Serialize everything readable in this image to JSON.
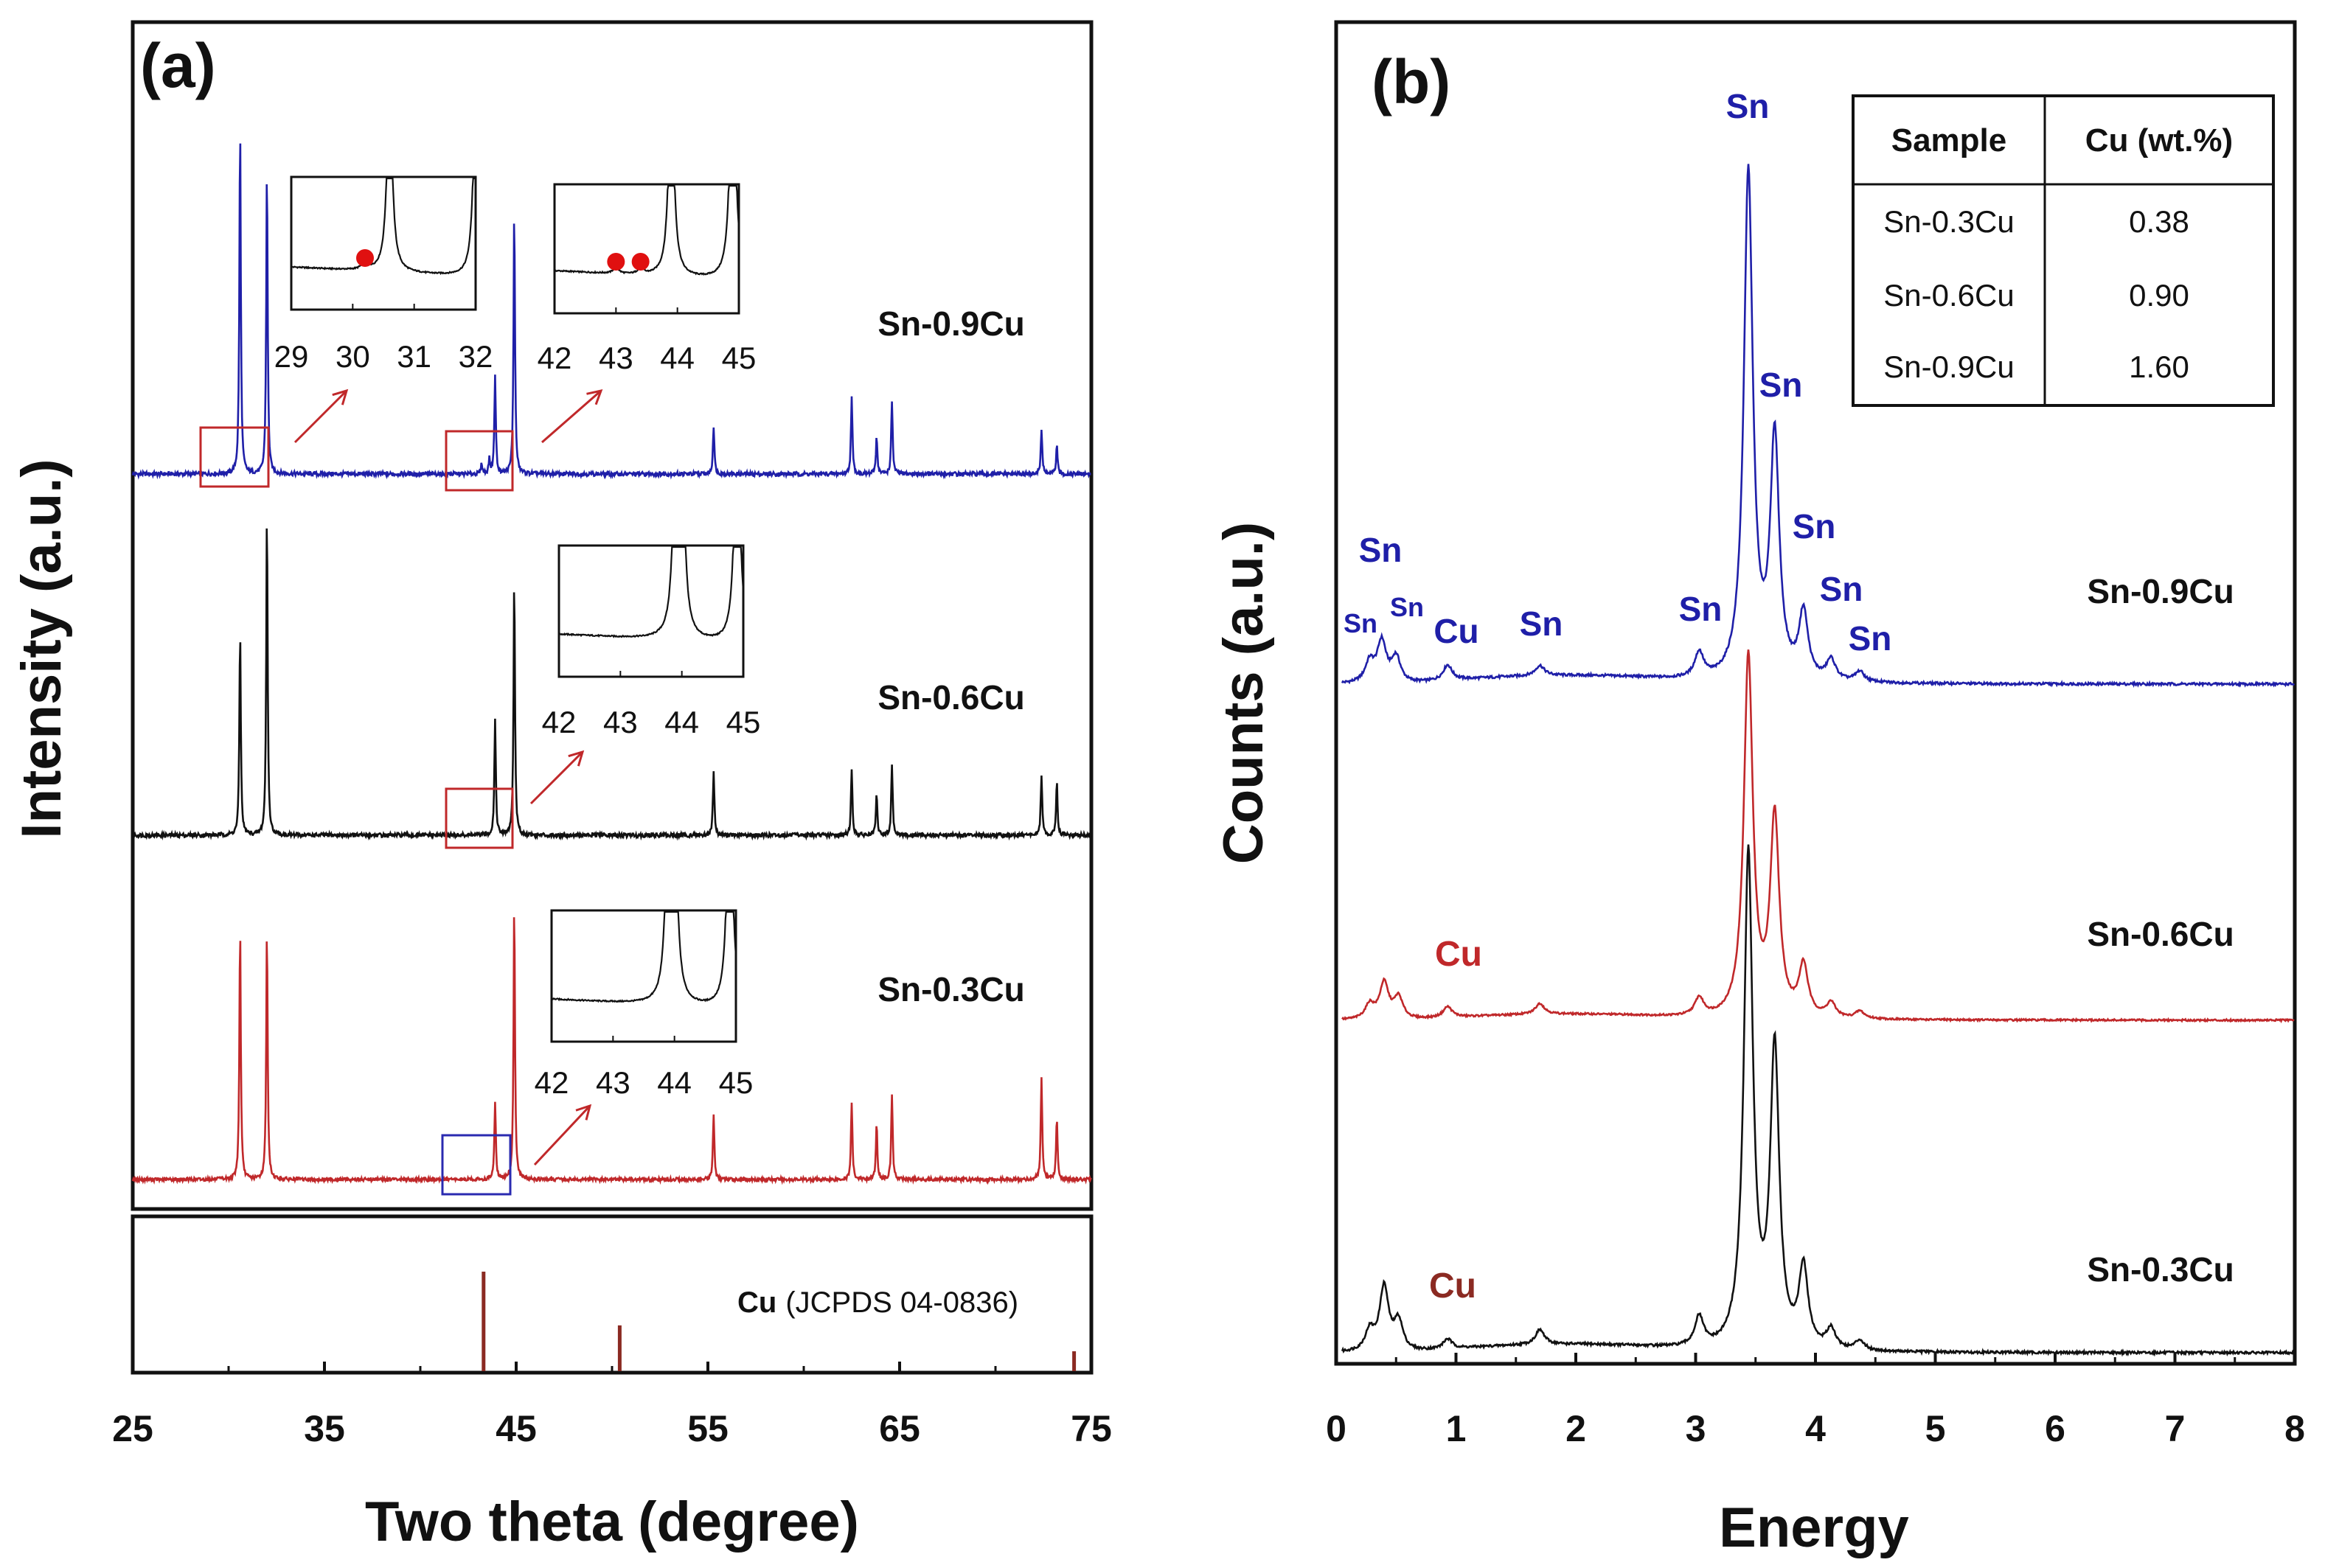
{
  "colors": {
    "blue": "#1f1fa8",
    "black": "#111111",
    "red": "#c0282a",
    "ref": "#8b2a22",
    "box_red": "#c0282a",
    "box_blue": "#2a2ab0",
    "marker": "#e01010"
  },
  "chart_data": [
    {
      "type": "line",
      "panel_label": "(a)",
      "title": "",
      "xlabel": "Two theta (degree)",
      "ylabel": "Intensity (a.u.)",
      "xlim": [
        25,
        75
      ],
      "xticks": [
        "25",
        "35",
        "45",
        "55",
        "65",
        "75"
      ],
      "xtick_values": [
        25,
        35,
        45,
        55,
        65,
        75
      ],
      "series": [
        {
          "name": "Sn-0.9Cu",
          "color": "#1f1fa8",
          "peaks": [
            [
              30.6,
              100
            ],
            [
              32.0,
              88
            ],
            [
              43.2,
              3
            ],
            [
              43.6,
              4
            ],
            [
              43.9,
              28
            ],
            [
              44.9,
              76
            ],
            [
              55.3,
              14
            ],
            [
              62.5,
              22
            ],
            [
              63.8,
              11
            ],
            [
              64.6,
              21
            ],
            [
              72.4,
              13
            ],
            [
              73.2,
              8
            ]
          ]
        },
        {
          "name": "Sn-0.6Cu",
          "color": "#111111",
          "peaks": [
            [
              30.6,
              60
            ],
            [
              32.0,
              95
            ],
            [
              43.9,
              34
            ],
            [
              44.9,
              75
            ],
            [
              55.3,
              19
            ],
            [
              62.5,
              19
            ],
            [
              63.8,
              12
            ],
            [
              64.6,
              21
            ],
            [
              72.4,
              18
            ],
            [
              73.2,
              16
            ]
          ]
        },
        {
          "name": "Sn-0.3Cu",
          "color": "#c0282a",
          "peaks": [
            [
              30.6,
              85
            ],
            [
              32.0,
              85
            ],
            [
              43.9,
              26
            ],
            [
              44.9,
              93
            ],
            [
              55.3,
              22
            ],
            [
              62.5,
              26
            ],
            [
              63.8,
              19
            ],
            [
              64.6,
              29
            ],
            [
              72.4,
              34
            ],
            [
              73.2,
              21
            ]
          ]
        }
      ],
      "reference": {
        "name": "Cu",
        "card": "(JCPDS 04-0836)",
        "color": "#8b2a22",
        "peaks": [
          [
            43.3,
            100
          ],
          [
            50.4,
            46
          ],
          [
            74.1,
            20
          ]
        ]
      },
      "insets": [
        {
          "series": "Sn-0.9Cu",
          "range": "29-32",
          "ticks": [
            "29",
            "30",
            "31",
            "32"
          ],
          "markers": [
            30.2
          ]
        },
        {
          "series": "Sn-0.9Cu",
          "range": "42-45",
          "ticks": [
            "42",
            "43",
            "44",
            "45"
          ],
          "markers": [
            43.0,
            43.4
          ]
        },
        {
          "series": "Sn-0.6Cu",
          "range": "42-45",
          "ticks": [
            "42",
            "43",
            "44",
            "45"
          ],
          "markers": []
        },
        {
          "series": "Sn-0.3Cu",
          "range": "42-45",
          "ticks": [
            "42",
            "43",
            "44",
            "45"
          ],
          "markers": []
        }
      ]
    },
    {
      "type": "line",
      "panel_label": "(b)",
      "title": "",
      "xlabel": "Energy",
      "ylabel": "Counts (a.u.)",
      "xlim": [
        0,
        8
      ],
      "xticks": [
        "0",
        "1",
        "2",
        "3",
        "4",
        "5",
        "6",
        "7",
        "8"
      ],
      "xtick_values": [
        0,
        1,
        2,
        3,
        4,
        5,
        6,
        7,
        8
      ],
      "series": [
        {
          "name": "Sn-0.9Cu",
          "color": "#1f1fa8",
          "peaks": [
            [
              0.28,
              4
            ],
            [
              0.38,
              8
            ],
            [
              0.5,
              5
            ],
            [
              0.93,
              3
            ],
            [
              1.7,
              2
            ],
            [
              3.03,
              5
            ],
            [
              3.44,
              100
            ],
            [
              3.66,
              47
            ],
            [
              3.9,
              13
            ],
            [
              4.13,
              4
            ],
            [
              4.37,
              2
            ]
          ]
        },
        {
          "name": "Sn-0.6Cu",
          "color": "#c0282a",
          "peaks": [
            [
              0.28,
              4
            ],
            [
              0.4,
              10
            ],
            [
              0.52,
              6
            ],
            [
              0.93,
              3
            ],
            [
              1.7,
              3
            ],
            [
              3.03,
              5
            ],
            [
              3.44,
              100
            ],
            [
              3.66,
              55
            ],
            [
              3.9,
              14
            ],
            [
              4.13,
              4
            ],
            [
              4.37,
              2
            ]
          ]
        },
        {
          "name": "Sn-0.3Cu",
          "color": "#111111",
          "peaks": [
            [
              0.28,
              4
            ],
            [
              0.4,
              13
            ],
            [
              0.52,
              6
            ],
            [
              0.93,
              2
            ],
            [
              1.7,
              3
            ],
            [
              3.03,
              6
            ],
            [
              3.44,
              100
            ],
            [
              3.66,
              60
            ],
            [
              3.9,
              16
            ],
            [
              4.13,
              4
            ],
            [
              4.37,
              2
            ]
          ]
        }
      ],
      "annotations_0_9": [
        {
          "text": "Sn",
          "energy": 0.22,
          "size": "small"
        },
        {
          "text": "Sn",
          "energy": 0.36,
          "size": "large"
        },
        {
          "text": "Sn",
          "energy": 0.57,
          "size": "small"
        },
        {
          "text": "Cu",
          "energy": 0.98,
          "size": "large"
        },
        {
          "text": "Sn",
          "energy": 1.69,
          "size": "large"
        },
        {
          "text": "Sn",
          "energy": 3.03,
          "size": "large"
        },
        {
          "text": "Sn",
          "energy": 3.44,
          "size": "large"
        },
        {
          "text": "Sn",
          "energy": 3.72,
          "size": "large"
        },
        {
          "text": "Sn",
          "energy": 3.94,
          "size": "large"
        },
        {
          "text": "Sn",
          "energy": 4.2,
          "size": "large"
        },
        {
          "text": "Sn",
          "energy": 4.45,
          "size": "large"
        }
      ],
      "annotations_cu": [
        {
          "series": "Sn-0.6Cu",
          "text": "Cu",
          "color": "#c0282a"
        },
        {
          "series": "Sn-0.3Cu",
          "text": "Cu",
          "color": "#8b2a22"
        }
      ],
      "table": {
        "headers": [
          "Sample",
          "Cu (wt.%)"
        ],
        "rows": [
          [
            "Sn-0.3Cu",
            "0.38"
          ],
          [
            "Sn-0.6Cu",
            "0.90"
          ],
          [
            "Sn-0.9Cu",
            "1.60"
          ]
        ]
      }
    }
  ]
}
